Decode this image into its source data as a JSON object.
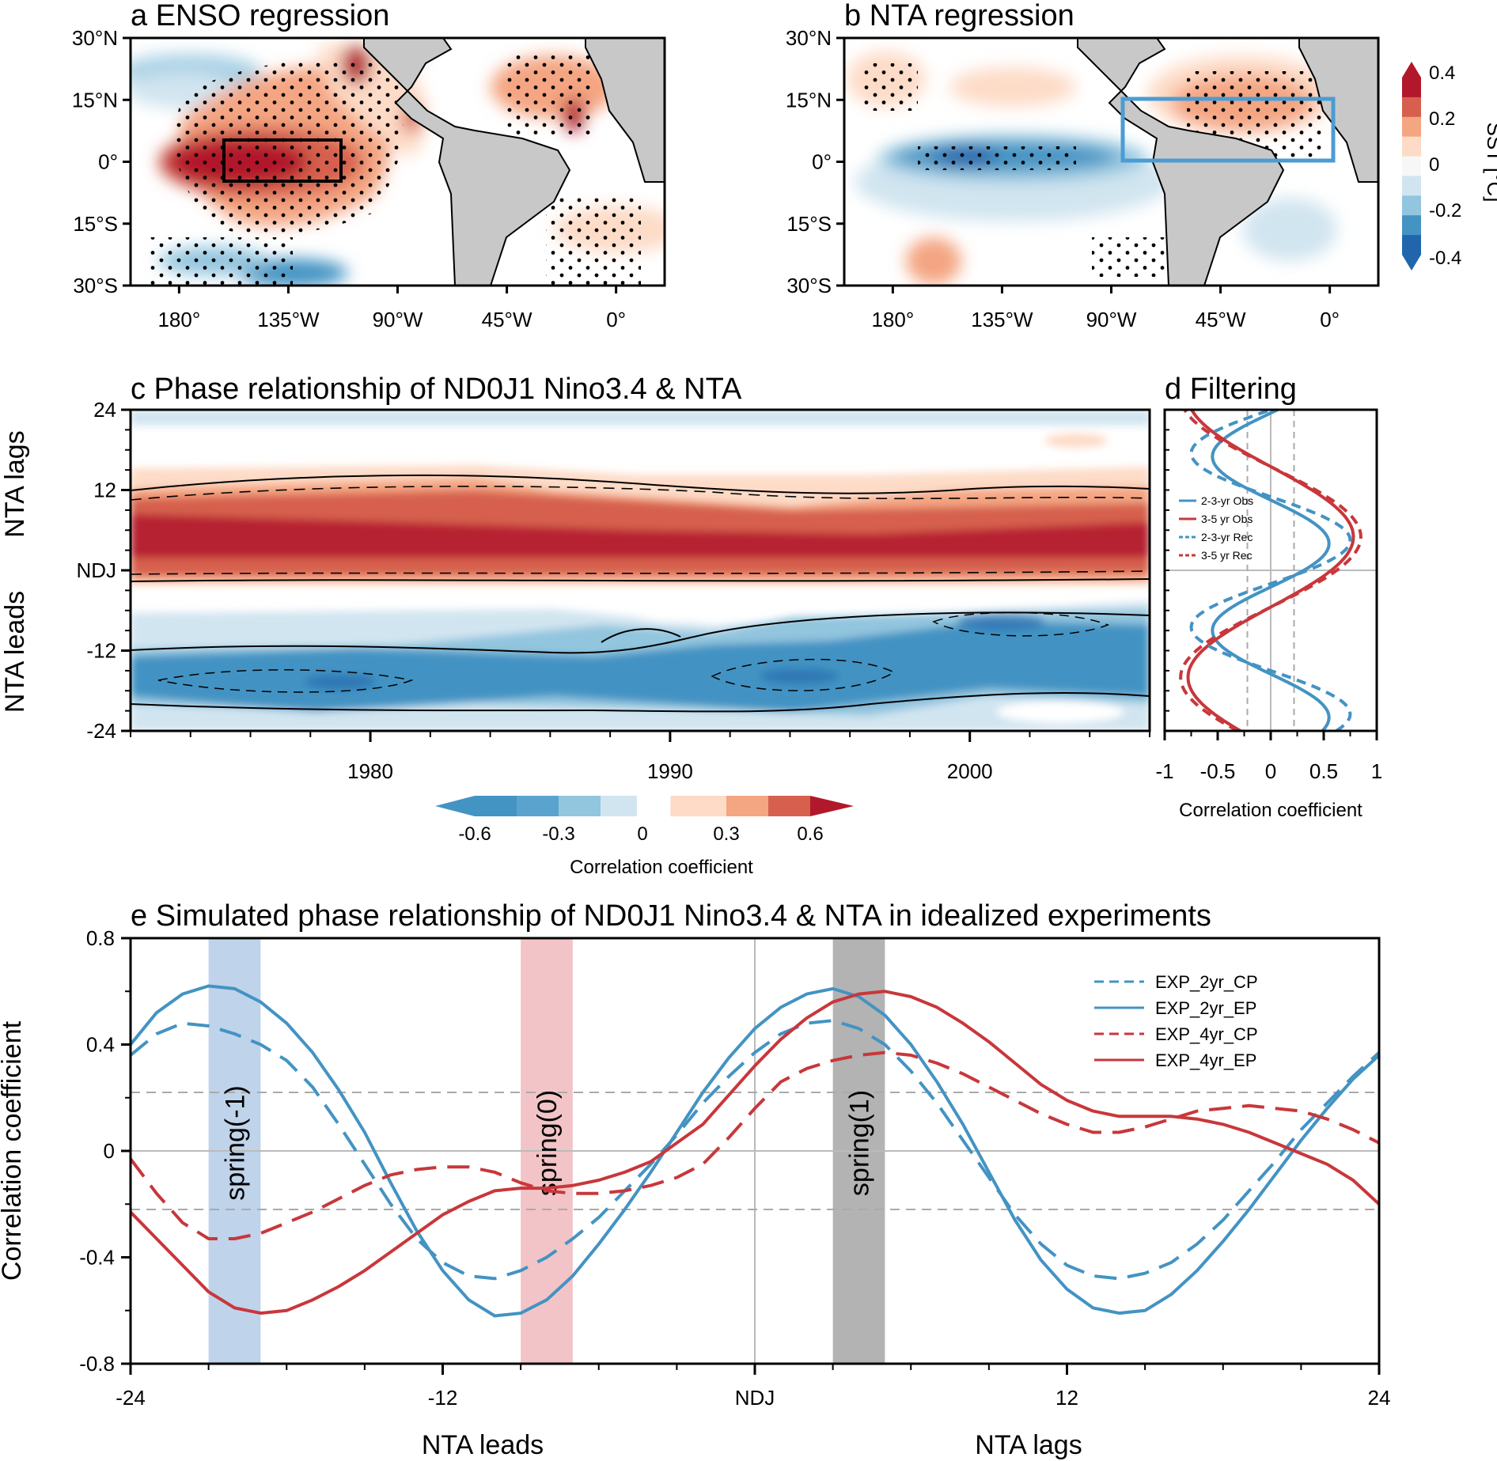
{
  "colors": {
    "red_dark": "#b2182b",
    "red_mid": "#d6604d",
    "red_light": "#f4a582",
    "red_pale": "#fddbc7",
    "blue_pale": "#d1e5f0",
    "blue_light": "#92c5de",
    "blue_mid": "#4393c3",
    "blue_dark": "#2166ac",
    "land": "#c8c8c8",
    "line_blue": "#4393c3",
    "line_red": "#c8373b",
    "band_blue": "#a9c4e4",
    "band_red": "#eeb0b4",
    "band_gray": "#9a9a9a"
  },
  "panel_a": {
    "title": "a ENSO regression",
    "lat_ticks": [
      "30°N",
      "15°N",
      "0°",
      "15°S",
      "30°S"
    ],
    "lon_ticks": [
      "180°",
      "135°W",
      "90°W",
      "45°W",
      "0°"
    ],
    "box_region": "Nino3.4"
  },
  "panel_b": {
    "title": "b NTA regression",
    "lat_ticks": [
      "30°N",
      "15°N",
      "0°",
      "15°S",
      "30°S"
    ],
    "lon_ticks": [
      "180°",
      "135°W",
      "90°W",
      "45°W",
      "0°"
    ],
    "box_region": "NTA"
  },
  "sst_colorbar": {
    "title": "SST [°C]",
    "ticks": [
      "0.4",
      "0.2",
      "0",
      "-0.2",
      "-0.4"
    ]
  },
  "panel_c": {
    "title": "c Phase relationship of ND0J1 Nino3.4 & NTA",
    "y_ticks": [
      "24",
      "12",
      "NDJ",
      "-12",
      "-24"
    ],
    "x_ticks": [
      "1980",
      "1990",
      "2000"
    ],
    "ylabel_top": "NTA lags",
    "ylabel_bottom": "NTA leads"
  },
  "corr_colorbar": {
    "title": "Correlation coefficient",
    "ticks": [
      "-0.6",
      "-0.3",
      "0",
      "0.3",
      "0.6"
    ]
  },
  "panel_d": {
    "title": "d Filtering",
    "x_ticks": [
      "-1",
      "-0.5",
      "0",
      "0.5",
      "1"
    ],
    "xlabel": "Correlation coefficient",
    "legend": [
      "2-3-yr Obs",
      "3-5 yr Obs",
      "2-3-yr Rec",
      "3-5 yr Rec"
    ]
  },
  "panel_e": {
    "title": "e Simulated phase relationship of ND0J1 Nino3.4 & NTA in idealized experiments",
    "ylabel": "Correlation coefficient",
    "xlabel_left": "NTA leads",
    "xlabel_right": "NTA lags",
    "y_ticks": [
      "0.8",
      "0.4",
      "0",
      "-0.4",
      "-0.8"
    ],
    "x_ticks": [
      "-24",
      "-12",
      "NDJ",
      "12",
      "24"
    ],
    "bands": [
      "spring(-1)",
      "spring(0)",
      "spring(1)"
    ]
  },
  "chart_data": [
    {
      "type": "heatmap",
      "title": "a ENSO regression",
      "variable": "SST regression [°C]",
      "lat_range": [
        -30,
        30
      ],
      "lon_range": [
        -200,
        20
      ],
      "clim": [
        -0.4,
        0.4
      ]
    },
    {
      "type": "heatmap",
      "title": "b NTA regression",
      "variable": "SST regression [°C]",
      "lat_range": [
        -30,
        30
      ],
      "lon_range": [
        -200,
        20
      ],
      "clim": [
        -0.4,
        0.4
      ]
    },
    {
      "type": "heatmap",
      "title": "c Phase relationship of ND0J1 Nino3.4 & NTA",
      "xlim": [
        1972,
        2006
      ],
      "ylim": [
        -24,
        24
      ],
      "clim": [
        -0.6,
        0.6
      ]
    },
    {
      "type": "line",
      "title": "d Filtering",
      "xlim": [
        -1,
        1
      ],
      "ylim": [
        -24,
        24
      ],
      "significance": [
        -0.22,
        0.22
      ],
      "series": [
        {
          "name": "2-3-yr Obs",
          "style": "solid",
          "color": "#4393c3",
          "amp": 0.55,
          "period": 26,
          "phase": 4
        },
        {
          "name": "3-5 yr Obs",
          "style": "solid",
          "color": "#c8373b",
          "amp": 0.78,
          "period": 42,
          "phase": 5
        },
        {
          "name": "2-3-yr Rec",
          "style": "dashed",
          "color": "#4393c3",
          "amp": 0.75,
          "period": 26,
          "phase": 4.5
        },
        {
          "name": "3-5 yr Rec",
          "style": "dashed",
          "color": "#c8373b",
          "amp": 0.85,
          "period": 42,
          "phase": 5
        }
      ]
    },
    {
      "type": "line",
      "title": "e Simulated phase relationship of ND0J1 Nino3.4 & NTA in idealized experiments",
      "xlim": [
        -24,
        24
      ],
      "ylim": [
        -0.8,
        0.8
      ],
      "significance": [
        -0.22,
        0.22
      ],
      "bands": [
        {
          "label": "spring(-1)",
          "x0": -21,
          "x1": -19,
          "color": "#a9c4e4"
        },
        {
          "label": "spring(0)",
          "x0": -9,
          "x1": -7,
          "color": "#eeb0b4"
        },
        {
          "label": "spring(1)",
          "x0": 3,
          "x1": 5,
          "color": "#9a9a9a"
        }
      ],
      "x": [
        -24,
        -23,
        -22,
        -21,
        -20,
        -19,
        -18,
        -17,
        -16,
        -15,
        -14,
        -13,
        -12,
        -11,
        -10,
        -9,
        -8,
        -7,
        -6,
        -5,
        -4,
        -3,
        -2,
        -1,
        0,
        1,
        2,
        3,
        4,
        5,
        6,
        7,
        8,
        9,
        10,
        11,
        12,
        13,
        14,
        15,
        16,
        17,
        18,
        19,
        20,
        21,
        22,
        23,
        24
      ],
      "series": [
        {
          "name": "EXP_2yr_CP",
          "style": "dashed",
          "color": "#4393c3",
          "values": [
            0.36,
            0.44,
            0.48,
            0.47,
            0.44,
            0.4,
            0.34,
            0.24,
            0.1,
            -0.05,
            -0.2,
            -0.33,
            -0.42,
            -0.47,
            -0.48,
            -0.45,
            -0.4,
            -0.33,
            -0.25,
            -0.15,
            -0.05,
            0.06,
            0.18,
            0.28,
            0.37,
            0.44,
            0.48,
            0.49,
            0.46,
            0.4,
            0.3,
            0.18,
            0.04,
            -0.1,
            -0.24,
            -0.35,
            -0.43,
            -0.47,
            -0.48,
            -0.46,
            -0.42,
            -0.35,
            -0.26,
            -0.15,
            -0.04,
            0.08,
            0.18,
            0.28,
            0.37
          ]
        },
        {
          "name": "EXP_2yr_EP",
          "style": "solid",
          "color": "#4393c3",
          "values": [
            0.4,
            0.52,
            0.59,
            0.62,
            0.61,
            0.56,
            0.48,
            0.37,
            0.23,
            0.07,
            -0.12,
            -0.3,
            -0.45,
            -0.56,
            -0.62,
            -0.61,
            -0.56,
            -0.47,
            -0.35,
            -0.22,
            -0.08,
            0.07,
            0.22,
            0.35,
            0.46,
            0.54,
            0.59,
            0.61,
            0.58,
            0.51,
            0.4,
            0.26,
            0.1,
            -0.08,
            -0.26,
            -0.41,
            -0.52,
            -0.59,
            -0.61,
            -0.6,
            -0.54,
            -0.45,
            -0.34,
            -0.22,
            -0.09,
            0.04,
            0.16,
            0.27,
            0.36
          ]
        },
        {
          "name": "EXP_4yr_CP",
          "style": "dashed",
          "color": "#c8373b",
          "values": [
            -0.03,
            -0.16,
            -0.27,
            -0.33,
            -0.33,
            -0.31,
            -0.27,
            -0.23,
            -0.18,
            -0.13,
            -0.09,
            -0.07,
            -0.06,
            -0.06,
            -0.08,
            -0.12,
            -0.15,
            -0.16,
            -0.16,
            -0.15,
            -0.13,
            -0.1,
            -0.05,
            0.05,
            0.16,
            0.26,
            0.31,
            0.34,
            0.36,
            0.37,
            0.36,
            0.33,
            0.29,
            0.24,
            0.19,
            0.14,
            0.1,
            0.07,
            0.07,
            0.09,
            0.12,
            0.15,
            0.16,
            0.17,
            0.16,
            0.15,
            0.12,
            0.08,
            0.03
          ]
        },
        {
          "name": "EXP_4yr_EP",
          "style": "solid",
          "color": "#c8373b",
          "values": [
            -0.23,
            -0.33,
            -0.43,
            -0.53,
            -0.59,
            -0.61,
            -0.6,
            -0.56,
            -0.51,
            -0.45,
            -0.38,
            -0.31,
            -0.24,
            -0.19,
            -0.15,
            -0.14,
            -0.14,
            -0.13,
            -0.11,
            -0.08,
            -0.04,
            0.03,
            0.1,
            0.21,
            0.32,
            0.42,
            0.5,
            0.56,
            0.59,
            0.6,
            0.58,
            0.54,
            0.48,
            0.41,
            0.33,
            0.25,
            0.19,
            0.15,
            0.13,
            0.13,
            0.13,
            0.12,
            0.1,
            0.07,
            0.03,
            -0.01,
            -0.05,
            -0.11,
            -0.2
          ]
        }
      ]
    }
  ]
}
